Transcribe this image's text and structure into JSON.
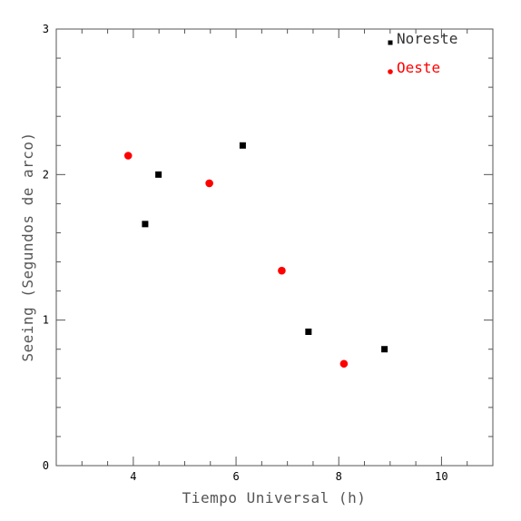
{
  "chart_data": {
    "type": "scatter",
    "xlabel": "Tiempo Universal (h)",
    "ylabel": "Seeing (Segundos de arco)",
    "xlim": [
      2.5,
      11.0
    ],
    "ylim": [
      0,
      3
    ],
    "xticks": [
      4,
      6,
      8,
      10
    ],
    "yticks": [
      0,
      1,
      2,
      3
    ],
    "xtick_labels": [
      "4",
      "6",
      "8",
      "10"
    ],
    "ytick_labels": [
      "0",
      "1",
      "2",
      "3"
    ],
    "grid": false,
    "legend_position": "top-right",
    "series": [
      {
        "name": "Noreste",
        "marker": "square",
        "color": "#000000",
        "points": [
          {
            "x": 4.23,
            "y": 1.66
          },
          {
            "x": 4.49,
            "y": 2.0
          },
          {
            "x": 6.13,
            "y": 2.2
          },
          {
            "x": 7.41,
            "y": 0.92
          },
          {
            "x": 8.89,
            "y": 0.8
          }
        ]
      },
      {
        "name": "Oeste",
        "marker": "circle",
        "color": "#ff0000",
        "points": [
          {
            "x": 3.9,
            "y": 2.13
          },
          {
            "x": 5.48,
            "y": 1.94
          },
          {
            "x": 6.89,
            "y": 1.34
          },
          {
            "x": 8.1,
            "y": 0.7
          }
        ]
      }
    ]
  }
}
